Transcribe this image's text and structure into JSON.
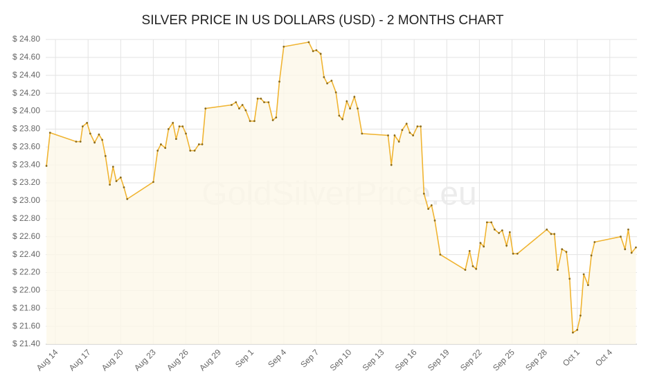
{
  "chart_data": {
    "type": "line",
    "title": "SILVER PRICE IN US DOLLARS (USD) - 2 MONTHS CHART",
    "watermark": "GoldSilverPrice.eu",
    "x": [
      -0.83,
      -0.5,
      1.9,
      2.3,
      2.5,
      2.9,
      3.2,
      3.6,
      4.0,
      4.3,
      4.6,
      5.0,
      5.3,
      5.6,
      6.0,
      6.3,
      6.6,
      9.0,
      9.4,
      9.7,
      10.1,
      10.4,
      10.8,
      11.1,
      11.4,
      11.7,
      12.0,
      12.4,
      12.8,
      13.2,
      13.5,
      13.8,
      16.2,
      16.6,
      16.9,
      17.2,
      17.5,
      17.9,
      18.3,
      18.6,
      18.9,
      19.2,
      19.6,
      20.0,
      20.3,
      20.6,
      21.0,
      23.3,
      23.7,
      24.0,
      24.4,
      24.7,
      25.0,
      25.4,
      25.8,
      26.1,
      26.4,
      26.8,
      27.1,
      27.5,
      27.8,
      28.2,
      30.6,
      30.9,
      31.2,
      31.6,
      31.9,
      32.3,
      32.6,
      32.9,
      33.3,
      33.6,
      33.9,
      34.3,
      34.6,
      34.9,
      35.4,
      37.7,
      38.1,
      38.4,
      38.7,
      39.1,
      39.4,
      39.7,
      40.1,
      40.4,
      40.8,
      41.1,
      41.5,
      41.8,
      42.1,
      42.5,
      45.2,
      45.6,
      45.9,
      46.2,
      46.6,
      47.0,
      47.3,
      47.6,
      48.0,
      48.3,
      48.6,
      49.0,
      49.3,
      49.6,
      52.0,
      52.4,
      52.7,
      53.0,
      53.4
    ],
    "series": [
      {
        "name": "Silver",
        "color": "#f0b431",
        "fill": "#fdf7e9",
        "values": [
          23.39,
          23.76,
          23.66,
          23.66,
          23.83,
          23.87,
          23.75,
          23.65,
          23.74,
          23.68,
          23.5,
          23.18,
          23.38,
          23.22,
          23.26,
          23.15,
          23.02,
          23.21,
          23.56,
          23.63,
          23.59,
          23.8,
          23.87,
          23.69,
          23.83,
          23.83,
          23.75,
          23.56,
          23.56,
          23.63,
          23.63,
          24.03,
          24.07,
          24.1,
          24.03,
          24.07,
          24.01,
          23.89,
          23.89,
          24.14,
          24.14,
          24.1,
          24.1,
          23.9,
          23.93,
          24.33,
          24.72,
          24.77,
          24.67,
          24.68,
          24.64,
          24.38,
          24.31,
          24.34,
          24.21,
          23.95,
          23.91,
          24.11,
          24.03,
          24.16,
          24.03,
          23.75,
          23.73,
          23.4,
          23.73,
          23.66,
          23.79,
          23.86,
          23.76,
          23.73,
          23.83,
          23.83,
          23.08,
          22.91,
          22.95,
          22.78,
          22.4,
          22.23,
          22.44,
          22.27,
          22.24,
          22.53,
          22.49,
          22.76,
          22.76,
          22.68,
          22.64,
          22.67,
          22.5,
          22.65,
          22.41,
          22.41,
          22.68,
          22.63,
          22.63,
          22.23,
          22.46,
          22.43,
          22.13,
          21.53,
          21.56,
          21.72,
          22.18,
          22.06,
          22.39,
          22.54,
          22.6,
          22.46,
          22.68,
          22.42,
          22.48
        ]
      }
    ],
    "xlim": [
      -0.9,
      53.5
    ],
    "xticks": [
      {
        "value": 0,
        "label": "Aug 14"
      },
      {
        "value": 3,
        "label": "Aug 17"
      },
      {
        "value": 6,
        "label": "Aug 20"
      },
      {
        "value": 9,
        "label": "Aug 23"
      },
      {
        "value": 12,
        "label": "Aug 26"
      },
      {
        "value": 15,
        "label": "Aug 29"
      },
      {
        "value": 18,
        "label": "Sep 1"
      },
      {
        "value": 21,
        "label": "Sep 4"
      },
      {
        "value": 24,
        "label": "Sep 7"
      },
      {
        "value": 27,
        "label": "Sep 10"
      },
      {
        "value": 30,
        "label": "Sep 13"
      },
      {
        "value": 33,
        "label": "Sep 16"
      },
      {
        "value": 36,
        "label": "Sep 19"
      },
      {
        "value": 39,
        "label": "Sep 22"
      },
      {
        "value": 42,
        "label": "Sep 25"
      },
      {
        "value": 45,
        "label": "Sep 28"
      },
      {
        "value": 48,
        "label": "Oct 1"
      },
      {
        "value": 51,
        "label": "Oct 4"
      }
    ],
    "ylim": [
      21.4,
      24.8
    ],
    "yticks": [
      {
        "value": 21.4,
        "label": "$ 21.40"
      },
      {
        "value": 21.6,
        "label": "$ 21.60"
      },
      {
        "value": 21.8,
        "label": "$ 21.80"
      },
      {
        "value": 22.0,
        "label": "$ 22.00"
      },
      {
        "value": 22.2,
        "label": "$ 22.20"
      },
      {
        "value": 22.4,
        "label": "$ 22.40"
      },
      {
        "value": 22.6,
        "label": "$ 22.60"
      },
      {
        "value": 22.8,
        "label": "$ 22.80"
      },
      {
        "value": 23.0,
        "label": "$ 23.00"
      },
      {
        "value": 23.2,
        "label": "$ 23.20"
      },
      {
        "value": 23.4,
        "label": "$ 23.40"
      },
      {
        "value": 23.6,
        "label": "$ 23.60"
      },
      {
        "value": 23.8,
        "label": "$ 23.80"
      },
      {
        "value": 24.0,
        "label": "$ 24.00"
      },
      {
        "value": 24.2,
        "label": "$ 24.20"
      },
      {
        "value": 24.4,
        "label": "$ 24.40"
      },
      {
        "value": 24.6,
        "label": "$ 24.60"
      },
      {
        "value": 24.8,
        "label": "$ 24.80"
      }
    ],
    "grid": true
  }
}
